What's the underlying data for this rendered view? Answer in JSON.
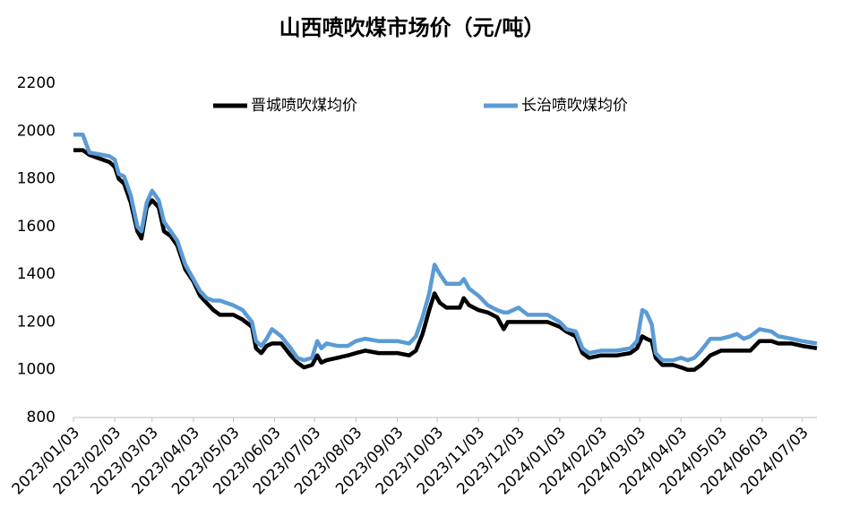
{
  "chart_data": {
    "type": "line",
    "title": "山西喷吹煤市场价（元/吨）",
    "x": [
      "2023/01/03",
      "2023/01/10",
      "2023/01/15",
      "2023/01/20",
      "2023/01/30",
      "2023/02/03",
      "2023/02/06",
      "2023/02/10",
      "2023/02/15",
      "2023/02/20",
      "2023/02/23",
      "2023/02/27",
      "2023/03/03",
      "2023/03/08",
      "2023/03/12",
      "2023/03/17",
      "2023/03/22",
      "2023/03/28",
      "2023/04/03",
      "2023/04/08",
      "2023/04/13",
      "2023/04/18",
      "2023/04/23",
      "2023/05/03",
      "2023/05/10",
      "2023/05/17",
      "2023/05/20",
      "2023/05/24",
      "2023/05/28",
      "2023/06/01",
      "2023/06/08",
      "2023/06/15",
      "2023/06/20",
      "2023/06/25",
      "2023/07/01",
      "2023/07/05",
      "2023/07/08",
      "2023/07/12",
      "2023/07/20",
      "2023/07/28",
      "2023/08/03",
      "2023/08/10",
      "2023/08/20",
      "2023/09/03",
      "2023/09/12",
      "2023/09/17",
      "2023/09/22",
      "2023/09/27",
      "2023/10/01",
      "2023/10/05",
      "2023/10/10",
      "2023/10/20",
      "2023/10/23",
      "2023/10/27",
      "2023/11/03",
      "2023/11/10",
      "2023/11/17",
      "2023/11/22",
      "2023/11/25",
      "2023/12/03",
      "2023/12/10",
      "2023/12/25",
      "2024/01/03",
      "2024/01/08",
      "2024/01/15",
      "2024/01/20",
      "2024/01/25",
      "2024/02/03",
      "2024/02/15",
      "2024/02/25",
      "2024/03/01",
      "2024/03/05",
      "2024/03/08",
      "2024/03/12",
      "2024/03/15",
      "2024/03/20",
      "2024/03/28",
      "2024/04/03",
      "2024/04/08",
      "2024/04/13",
      "2024/04/18",
      "2024/04/25",
      "2024/05/03",
      "2024/05/10",
      "2024/05/15",
      "2024/05/20",
      "2024/05/25",
      "2024/06/01",
      "2024/06/10",
      "2024/06/15",
      "2024/06/25",
      "2024/07/03",
      "2024/07/14"
    ],
    "series": [
      {
        "name": "晋城喷吹煤均价",
        "color": "#000000",
        "values": [
          1920,
          1920,
          1900,
          1890,
          1870,
          1850,
          1800,
          1780,
          1700,
          1580,
          1550,
          1680,
          1710,
          1680,
          1580,
          1560,
          1520,
          1420,
          1370,
          1310,
          1280,
          1250,
          1230,
          1230,
          1210,
          1180,
          1090,
          1070,
          1100,
          1110,
          1110,
          1060,
          1030,
          1010,
          1020,
          1060,
          1030,
          1040,
          1050,
          1060,
          1070,
          1080,
          1070,
          1070,
          1060,
          1080,
          1150,
          1250,
          1320,
          1280,
          1260,
          1260,
          1300,
          1270,
          1250,
          1240,
          1220,
          1170,
          1200,
          1200,
          1200,
          1200,
          1180,
          1160,
          1140,
          1070,
          1050,
          1060,
          1060,
          1070,
          1090,
          1140,
          1130,
          1120,
          1050,
          1020,
          1020,
          1010,
          1000,
          1000,
          1020,
          1060,
          1080,
          1080,
          1080,
          1080,
          1080,
          1120,
          1120,
          1110,
          1110,
          1100,
          1090
        ]
      },
      {
        "name": "长治喷吹煤均价",
        "color": "#5b9bd5",
        "values": [
          1985,
          1985,
          1910,
          1905,
          1895,
          1880,
          1820,
          1810,
          1730,
          1600,
          1580,
          1700,
          1750,
          1710,
          1620,
          1580,
          1540,
          1440,
          1380,
          1330,
          1300,
          1290,
          1290,
          1270,
          1250,
          1200,
          1120,
          1100,
          1130,
          1170,
          1140,
          1090,
          1050,
          1040,
          1050,
          1120,
          1090,
          1110,
          1100,
          1100,
          1120,
          1130,
          1120,
          1120,
          1110,
          1140,
          1220,
          1320,
          1440,
          1400,
          1360,
          1360,
          1380,
          1340,
          1310,
          1270,
          1250,
          1240,
          1240,
          1260,
          1230,
          1230,
          1200,
          1170,
          1160,
          1090,
          1070,
          1080,
          1080,
          1090,
          1120,
          1250,
          1240,
          1190,
          1070,
          1040,
          1040,
          1050,
          1040,
          1050,
          1080,
          1130,
          1130,
          1140,
          1150,
          1130,
          1140,
          1170,
          1160,
          1140,
          1130,
          1120,
          1110
        ]
      }
    ],
    "xlim": [
      "2023/01/03",
      "2024/07/14"
    ],
    "xticks": [
      "2023/01/03",
      "2023/02/03",
      "2023/03/03",
      "2023/04/03",
      "2023/05/03",
      "2023/06/03",
      "2023/07/03",
      "2023/08/03",
      "2023/09/03",
      "2023/10/03",
      "2023/11/03",
      "2023/12/03",
      "2024/01/03",
      "2024/02/03",
      "2024/03/03",
      "2024/04/03",
      "2024/05/03",
      "2024/06/03",
      "2024/07/03"
    ],
    "ylim": [
      800,
      2200
    ],
    "yticks": [
      800,
      1000,
      1200,
      1400,
      1600,
      1800,
      2000,
      2200
    ],
    "grid": false,
    "legend": "top"
  }
}
